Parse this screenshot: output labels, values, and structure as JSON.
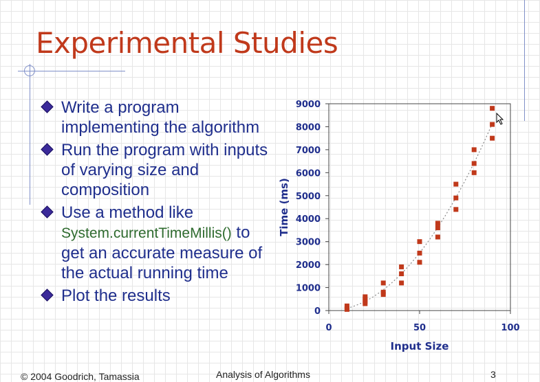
{
  "slide": {
    "title": "Experimental Studies",
    "bullets": [
      "Write a program implementing the algorithm",
      "Run the program with inputs of varying size and composition"
    ],
    "bullet3": {
      "line1": "Use a method like",
      "code": "System.currentTimeMillis()",
      "code_suffix": " to",
      "rest": "get an accurate measure of the actual running time"
    },
    "bullet4": "Plot the results",
    "footer_left": "© 2004 Goodrich, Tamassia",
    "footer_center": "Analysis of Algorithms",
    "page_number": "3"
  },
  "colors": {
    "title": "#c0391b",
    "bullet_text": "#1f2e8c",
    "code_text": "#2f6b2f",
    "point": "#c0391b"
  },
  "chart_data": {
    "type": "scatter",
    "xlabel": "Input Size",
    "ylabel": "Time (ms)",
    "xlim": [
      0,
      100
    ],
    "ylim": [
      0,
      9000
    ],
    "x_ticks": [
      0,
      50,
      100
    ],
    "y_ticks": [
      0,
      1000,
      2000,
      3000,
      4000,
      5000,
      6000,
      7000,
      8000,
      9000
    ],
    "grid": false,
    "trendline": "dotted quadratic",
    "points": [
      [
        10,
        50
      ],
      [
        10,
        100
      ],
      [
        10,
        200
      ],
      [
        20,
        300
      ],
      [
        20,
        400
      ],
      [
        20,
        500
      ],
      [
        20,
        600
      ],
      [
        30,
        700
      ],
      [
        30,
        800
      ],
      [
        30,
        1200
      ],
      [
        40,
        1200
      ],
      [
        40,
        1600
      ],
      [
        40,
        1900
      ],
      [
        50,
        2100
      ],
      [
        50,
        2500
      ],
      [
        50,
        3000
      ],
      [
        60,
        3200
      ],
      [
        60,
        3600
      ],
      [
        60,
        3800
      ],
      [
        70,
        4400
      ],
      [
        70,
        4900
      ],
      [
        70,
        5500
      ],
      [
        80,
        6000
      ],
      [
        80,
        6400
      ],
      [
        80,
        7000
      ],
      [
        90,
        7500
      ],
      [
        90,
        8100
      ],
      [
        90,
        8800
      ]
    ]
  }
}
